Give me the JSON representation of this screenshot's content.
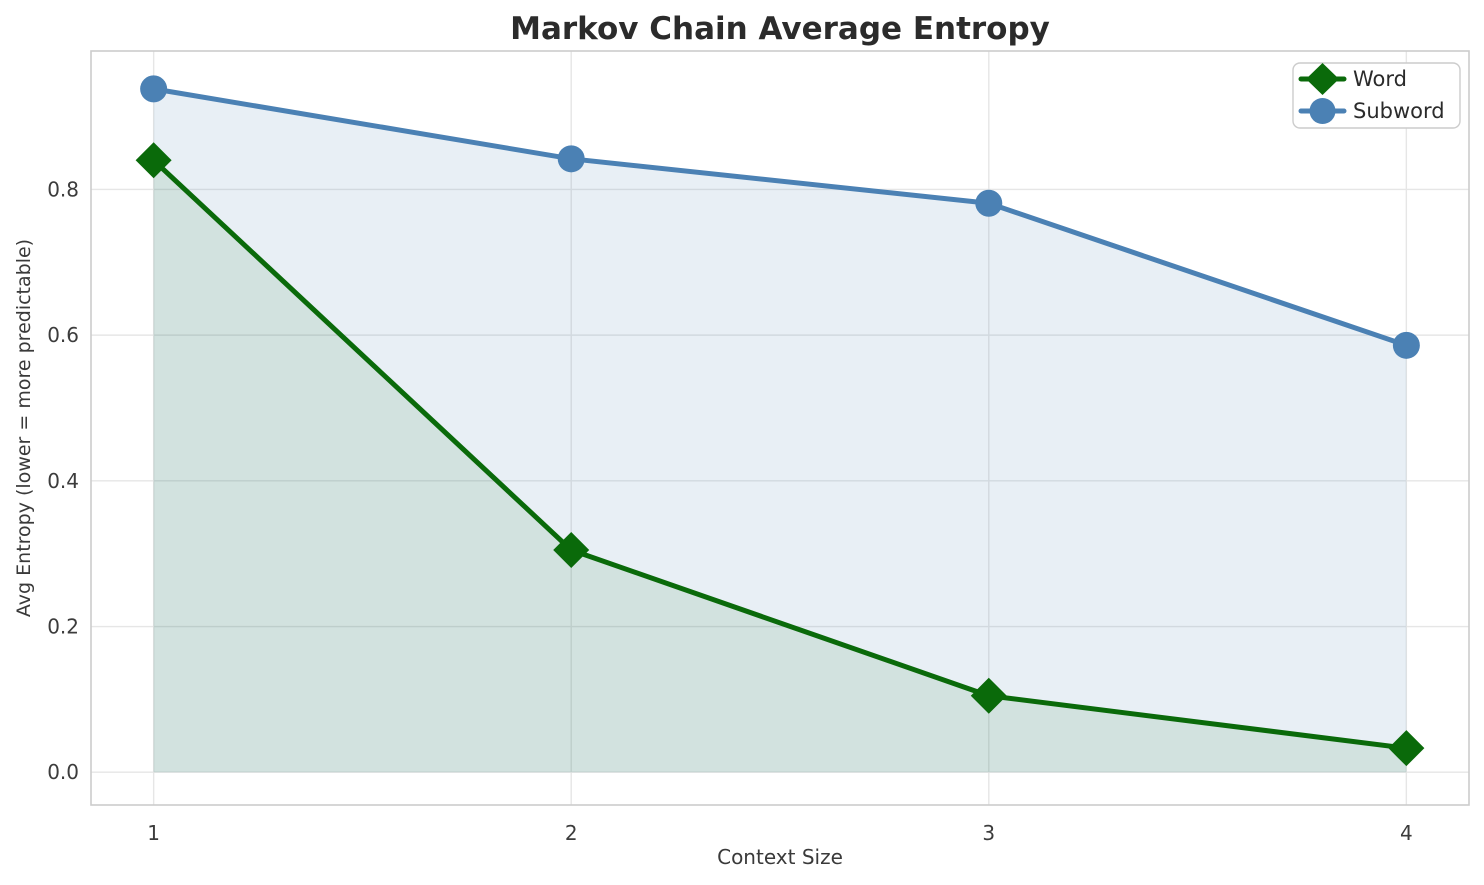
{
  "page": {
    "background": "#ffffff"
  },
  "chart_data": {
    "type": "line",
    "title": "Markov Chain Average Entropy",
    "xlabel": "Context Size",
    "ylabel": "Avg Entropy (lower = more predictable)",
    "x": [
      1,
      2,
      3,
      4
    ],
    "series": [
      {
        "name": "Word",
        "values": [
          0.84,
          0.305,
          0.105,
          0.033
        ],
        "color": "#0a6a0a",
        "marker": "diamond",
        "area_fill": true,
        "fill_opacity": 0.1
      },
      {
        "name": "Subword",
        "values": [
          0.938,
          0.842,
          0.781,
          0.586
        ],
        "color": "#4b81b4",
        "marker": "circle",
        "area_fill": true,
        "fill_opacity": 0.13
      }
    ],
    "xtick_labels": [
      "1",
      "2",
      "3",
      "4"
    ],
    "xtick_values": [
      1,
      2,
      3,
      4
    ],
    "ytick_labels": [
      "0.0",
      "0.2",
      "0.4",
      "0.6",
      "0.8"
    ],
    "ytick_values": [
      0.0,
      0.2,
      0.4,
      0.6,
      0.8
    ],
    "xlim": [
      0.85,
      4.15
    ],
    "ylim": [
      -0.045,
      0.99
    ],
    "grid": true,
    "legend_position": "top-right",
    "style": {
      "grid_color": "#e6e6e6",
      "spine_color": "#cccccc",
      "title_color": "#2b2b2b",
      "tick_color": "#3c3c3c",
      "label_color": "#3a3a3a",
      "legend_border": "#cccccc",
      "legend_bg": "#ffffff",
      "legend_text": "#2b2b2b"
    }
  }
}
